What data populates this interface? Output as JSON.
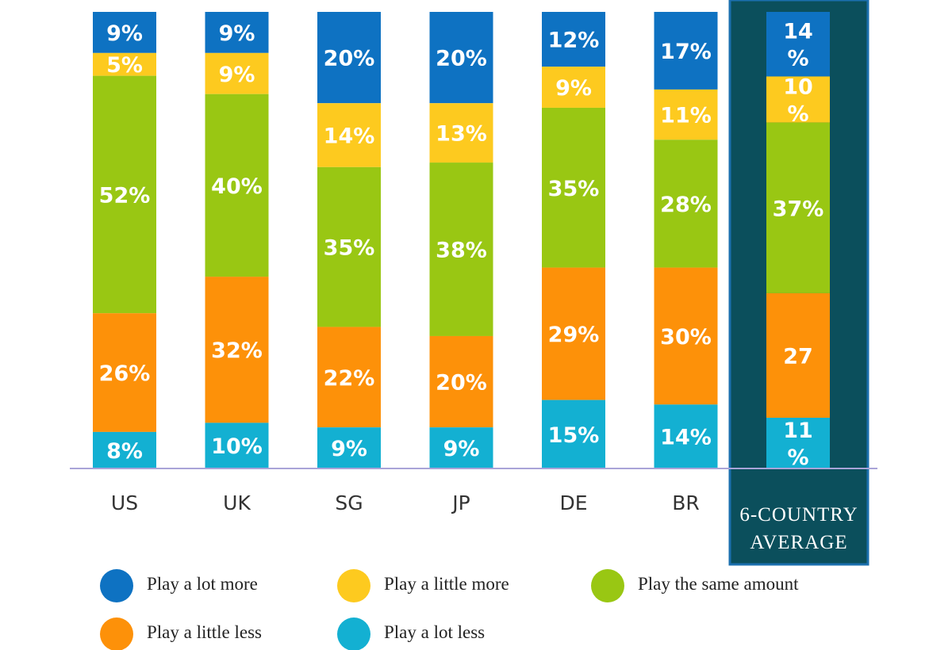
{
  "chart_data": {
    "type": "bar",
    "stacked": true,
    "orientation": "vertical",
    "categories": [
      "US",
      "UK",
      "SG",
      "JP",
      "DE",
      "BR",
      "6-COUNTRY AVERAGE"
    ],
    "series": [
      {
        "name": "Play a lot more",
        "color": "#0e72c2",
        "values": [
          9,
          9,
          20,
          20,
          12,
          17,
          14
        ],
        "labels": [
          "9%",
          "9%",
          "20%",
          "20%",
          "12%",
          "17%",
          "14\n%"
        ]
      },
      {
        "name": "Play a little more",
        "color": "#fdca1f",
        "values": [
          5,
          9,
          14,
          13,
          9,
          11,
          10
        ],
        "labels": [
          "5%",
          "9%",
          "14%",
          "13%",
          "9%",
          "11%",
          "10\n%"
        ]
      },
      {
        "name": "Play the same amount",
        "color": "#99c713",
        "values": [
          52,
          40,
          35,
          38,
          35,
          28,
          37
        ],
        "labels": [
          "52%",
          "40%",
          "35%",
          "38%",
          "35%",
          "28%",
          "37%"
        ]
      },
      {
        "name": "Play a little less",
        "color": "#fd9109",
        "values": [
          26,
          32,
          22,
          20,
          29,
          30,
          27
        ],
        "labels": [
          "26%",
          "32%",
          "22%",
          "20%",
          "29%",
          "30%",
          "27"
        ]
      },
      {
        "name": "Play a lot less",
        "color": "#13b0d2",
        "values": [
          8,
          10,
          9,
          9,
          15,
          14,
          11
        ],
        "labels": [
          "8%",
          "10%",
          "9%",
          "9%",
          "15%",
          "14%",
          "11\n%"
        ]
      }
    ],
    "legend_position": "bottom",
    "highlight_category": "6-COUNTRY AVERAGE",
    "highlight_color": "#0b4f5c",
    "baseline_color": "#a9a4d8",
    "grid": false
  }
}
